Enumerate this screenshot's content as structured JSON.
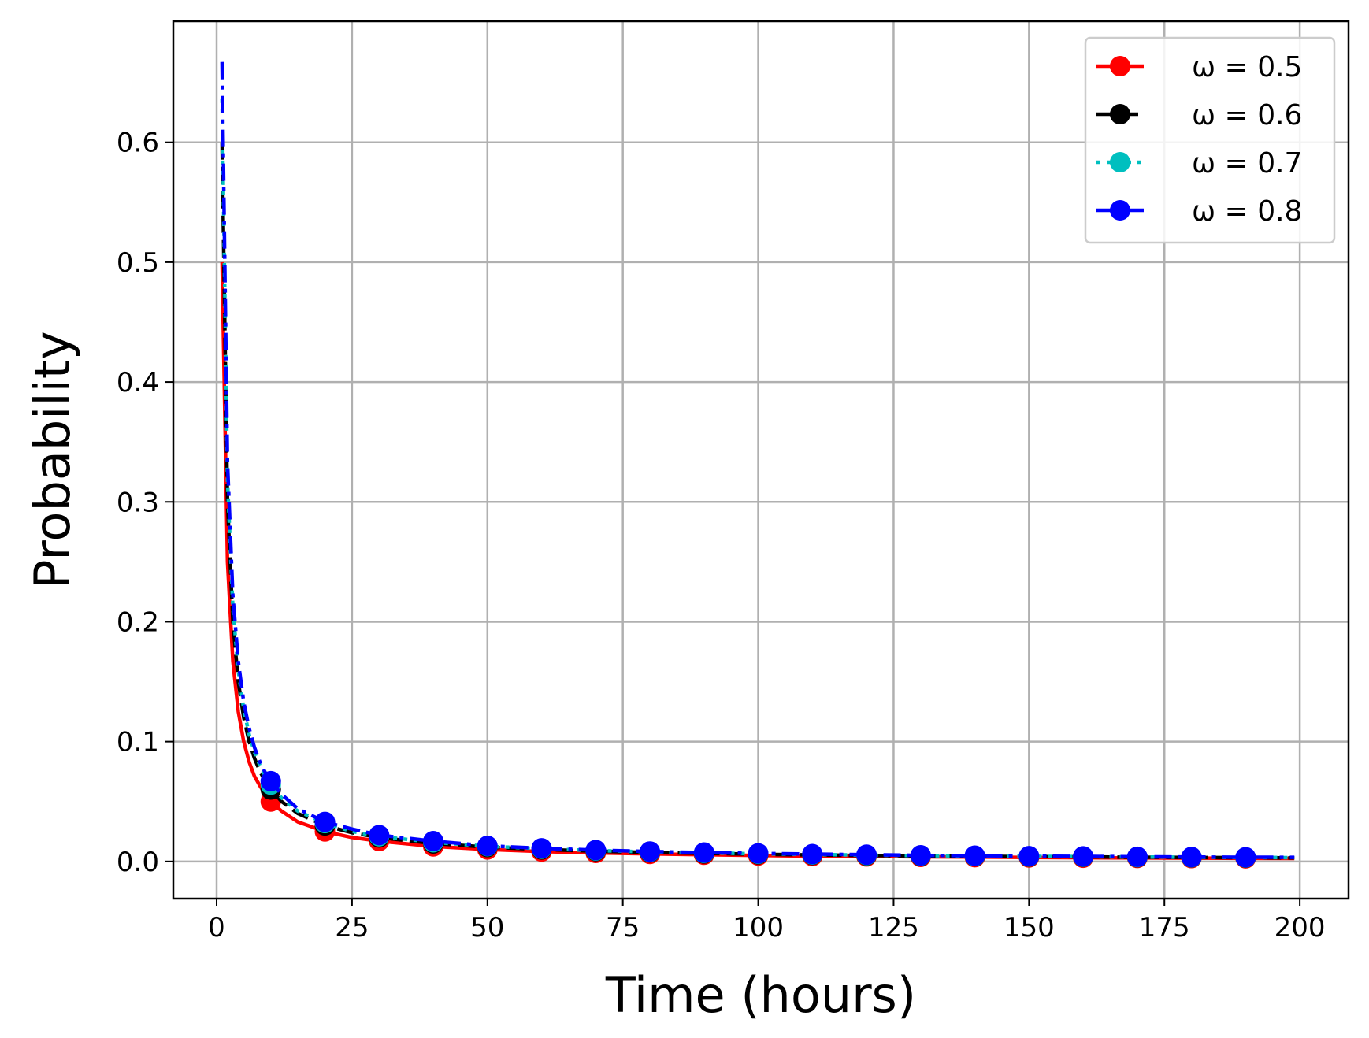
{
  "chart_data": {
    "type": "line",
    "xlabel": "Time (hours)",
    "ylabel": "Probability",
    "xlim": [
      -8,
      209
    ],
    "ylim": [
      -0.031,
      0.701
    ],
    "xticks": [
      0,
      25,
      50,
      75,
      100,
      125,
      150,
      175,
      200
    ],
    "yticks": [
      0.0,
      0.1,
      0.2,
      0.3,
      0.4,
      0.5,
      0.6
    ],
    "ytick_labels": [
      "0.0",
      "0.1",
      "0.2",
      "0.3",
      "0.4",
      "0.5",
      "0.6"
    ],
    "grid": true,
    "legend_position": "top-right",
    "marker_x": [
      10,
      20,
      30,
      40,
      50,
      60,
      70,
      80,
      90,
      100,
      110,
      120,
      130,
      140,
      150,
      160,
      170,
      180,
      190
    ],
    "series": [
      {
        "name": "ω = 0.5",
        "color": "#ff0000",
        "dash": "solid",
        "x": [
          1,
          2,
          3,
          4,
          5,
          6,
          7,
          8,
          9,
          10,
          12,
          15,
          20,
          25,
          30,
          40,
          50,
          60,
          70,
          80,
          90,
          100,
          110,
          120,
          130,
          140,
          150,
          160,
          170,
          180,
          190,
          199
        ],
        "values": [
          0.5,
          0.25,
          0.167,
          0.125,
          0.1,
          0.083,
          0.071,
          0.063,
          0.056,
          0.05,
          0.042,
          0.033,
          0.025,
          0.02,
          0.017,
          0.0125,
          0.01,
          0.0083,
          0.0071,
          0.0063,
          0.0056,
          0.005,
          0.0045,
          0.0042,
          0.0038,
          0.0036,
          0.0033,
          0.0031,
          0.0029,
          0.0028,
          0.0026,
          0.0025
        ]
      },
      {
        "name": "ω = 0.6",
        "color": "#000000",
        "dash": "dashed",
        "x": [
          1,
          2,
          3,
          4,
          5,
          6,
          7,
          8,
          9,
          10,
          12,
          15,
          20,
          25,
          30,
          40,
          50,
          60,
          70,
          80,
          90,
          100,
          110,
          120,
          130,
          140,
          150,
          160,
          170,
          180,
          190,
          199
        ],
        "values": [
          0.6,
          0.3,
          0.2,
          0.15,
          0.12,
          0.1,
          0.086,
          0.075,
          0.067,
          0.06,
          0.05,
          0.04,
          0.03,
          0.024,
          0.02,
          0.015,
          0.012,
          0.01,
          0.0086,
          0.0075,
          0.0067,
          0.006,
          0.0055,
          0.005,
          0.0046,
          0.0043,
          0.004,
          0.0038,
          0.0035,
          0.0033,
          0.0032,
          0.003
        ]
      },
      {
        "name": "ω = 0.7",
        "color": "#00bfbf",
        "dash": "dotted",
        "x": [
          1,
          2,
          3,
          4,
          5,
          6,
          7,
          8,
          9,
          10,
          12,
          15,
          20,
          25,
          30,
          40,
          50,
          60,
          70,
          80,
          90,
          100,
          110,
          120,
          130,
          140,
          150,
          160,
          170,
          180,
          190,
          199
        ],
        "values": [
          0.636,
          0.318,
          0.212,
          0.159,
          0.127,
          0.106,
          0.091,
          0.08,
          0.071,
          0.064,
          0.053,
          0.042,
          0.032,
          0.025,
          0.021,
          0.016,
          0.0127,
          0.0106,
          0.0091,
          0.008,
          0.0071,
          0.0064,
          0.0058,
          0.0053,
          0.0049,
          0.0045,
          0.0042,
          0.004,
          0.0037,
          0.0035,
          0.0033,
          0.0032
        ]
      },
      {
        "name": "ω = 0.8",
        "color": "#0000ff",
        "dash": "dashdot",
        "x": [
          1,
          2,
          3,
          4,
          5,
          6,
          7,
          8,
          9,
          10,
          12,
          15,
          20,
          25,
          30,
          40,
          50,
          60,
          70,
          80,
          90,
          100,
          110,
          120,
          130,
          140,
          150,
          160,
          170,
          180,
          190,
          199
        ],
        "values": [
          0.667,
          0.333,
          0.222,
          0.167,
          0.133,
          0.111,
          0.095,
          0.083,
          0.074,
          0.067,
          0.056,
          0.044,
          0.033,
          0.027,
          0.022,
          0.017,
          0.013,
          0.011,
          0.0095,
          0.0083,
          0.0074,
          0.0067,
          0.0061,
          0.0056,
          0.0051,
          0.0048,
          0.0044,
          0.0042,
          0.0039,
          0.0037,
          0.0035,
          0.0034
        ]
      }
    ]
  }
}
